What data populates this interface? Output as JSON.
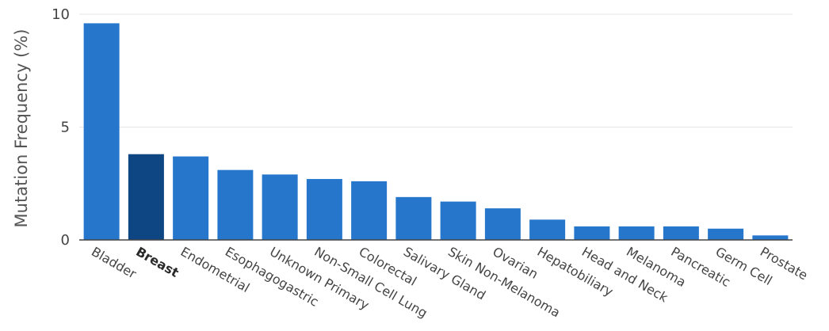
{
  "chart_data": {
    "type": "bar",
    "title": "",
    "xlabel": "",
    "ylabel": "Mutation Frequency (%)",
    "ylim": [
      0,
      10
    ],
    "yticks": [
      0,
      5,
      10
    ],
    "grid": true,
    "categories": [
      "Bladder",
      "Breast",
      "Endometrial",
      "Esophagogastric",
      "Unknown Primary",
      "Non-Small Cell Lung",
      "Colorectal",
      "Salivary Gland",
      "Skin Non-Melanoma",
      "Ovarian",
      "Hepatobiliary",
      "Head and Neck",
      "Melanoma",
      "Pancreatic",
      "Germ Cell",
      "Prostate"
    ],
    "values": [
      9.6,
      3.8,
      3.7,
      3.1,
      2.9,
      2.7,
      2.6,
      1.9,
      1.7,
      1.4,
      0.9,
      0.6,
      0.6,
      0.6,
      0.5,
      0.2
    ],
    "highlight_category": "Breast",
    "colors": {
      "bar": "#2677cc",
      "highlight": "#0d4682",
      "grid": "#e6e6e6",
      "axis": "#444444"
    }
  }
}
